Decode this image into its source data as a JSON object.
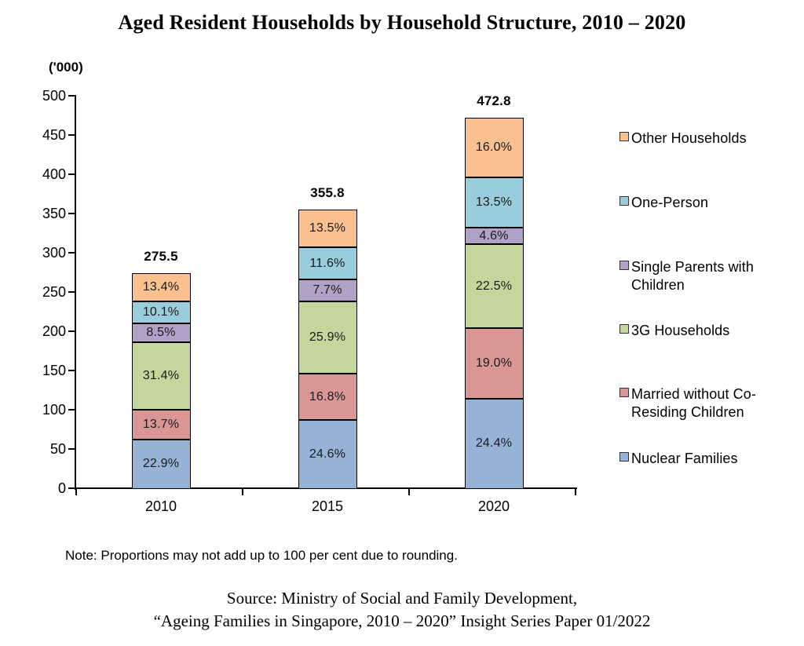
{
  "title": "Aged Resident Households by Household Structure, 2010 – 2020",
  "y_axis": {
    "unit_label": "('000)"
  },
  "note": "Note: Proportions may not add up to 100 per cent due to rounding.",
  "source": {
    "line1": "Source: Ministry of Social and Family Development,",
    "line2": "“Ageing Families in Singapore, 2010 – 2020” Insight Series Paper 01/2022"
  },
  "chart_data": {
    "type": "bar",
    "stacked": true,
    "title": "Aged Resident Households by Household Structure, 2010 – 2020",
    "unit": "'000 households",
    "categories": [
      "2010",
      "2015",
      "2020"
    ],
    "totals": [
      275.5,
      355.8,
      472.8
    ],
    "total_labels": [
      "275.5",
      "355.8",
      "472.8"
    ],
    "series_bottom_to_top": [
      {
        "name": "Nuclear Families",
        "color": "#95B3D7",
        "percent": [
          22.9,
          24.6,
          24.4
        ]
      },
      {
        "name": "Married without Co-Residing Children",
        "color": "#D99694",
        "percent": [
          13.7,
          16.8,
          19.0
        ]
      },
      {
        "name": "3G Households",
        "color": "#C3D69B",
        "percent": [
          31.4,
          25.9,
          22.5
        ]
      },
      {
        "name": "Single Parents with Children",
        "color": "#B2A1C7",
        "percent": [
          8.5,
          7.7,
          4.6
        ]
      },
      {
        "name": "One-Person",
        "color": "#9ACDDC",
        "percent": [
          10.1,
          11.6,
          13.5
        ]
      },
      {
        "name": "Other Households",
        "color": "#FAC090",
        "percent": [
          13.4,
          13.5,
          16.0
        ]
      }
    ],
    "legend_order_top_to_bottom": [
      "Other Households",
      "One-Person",
      "Single Parents with Children",
      "3G Households",
      "Married without Co-Residing Children",
      "Nuclear Families"
    ],
    "ylim": [
      0,
      500
    ],
    "y_tick_step": 50,
    "grid": false,
    "legend_position": "right",
    "axis_color": "#000000"
  }
}
